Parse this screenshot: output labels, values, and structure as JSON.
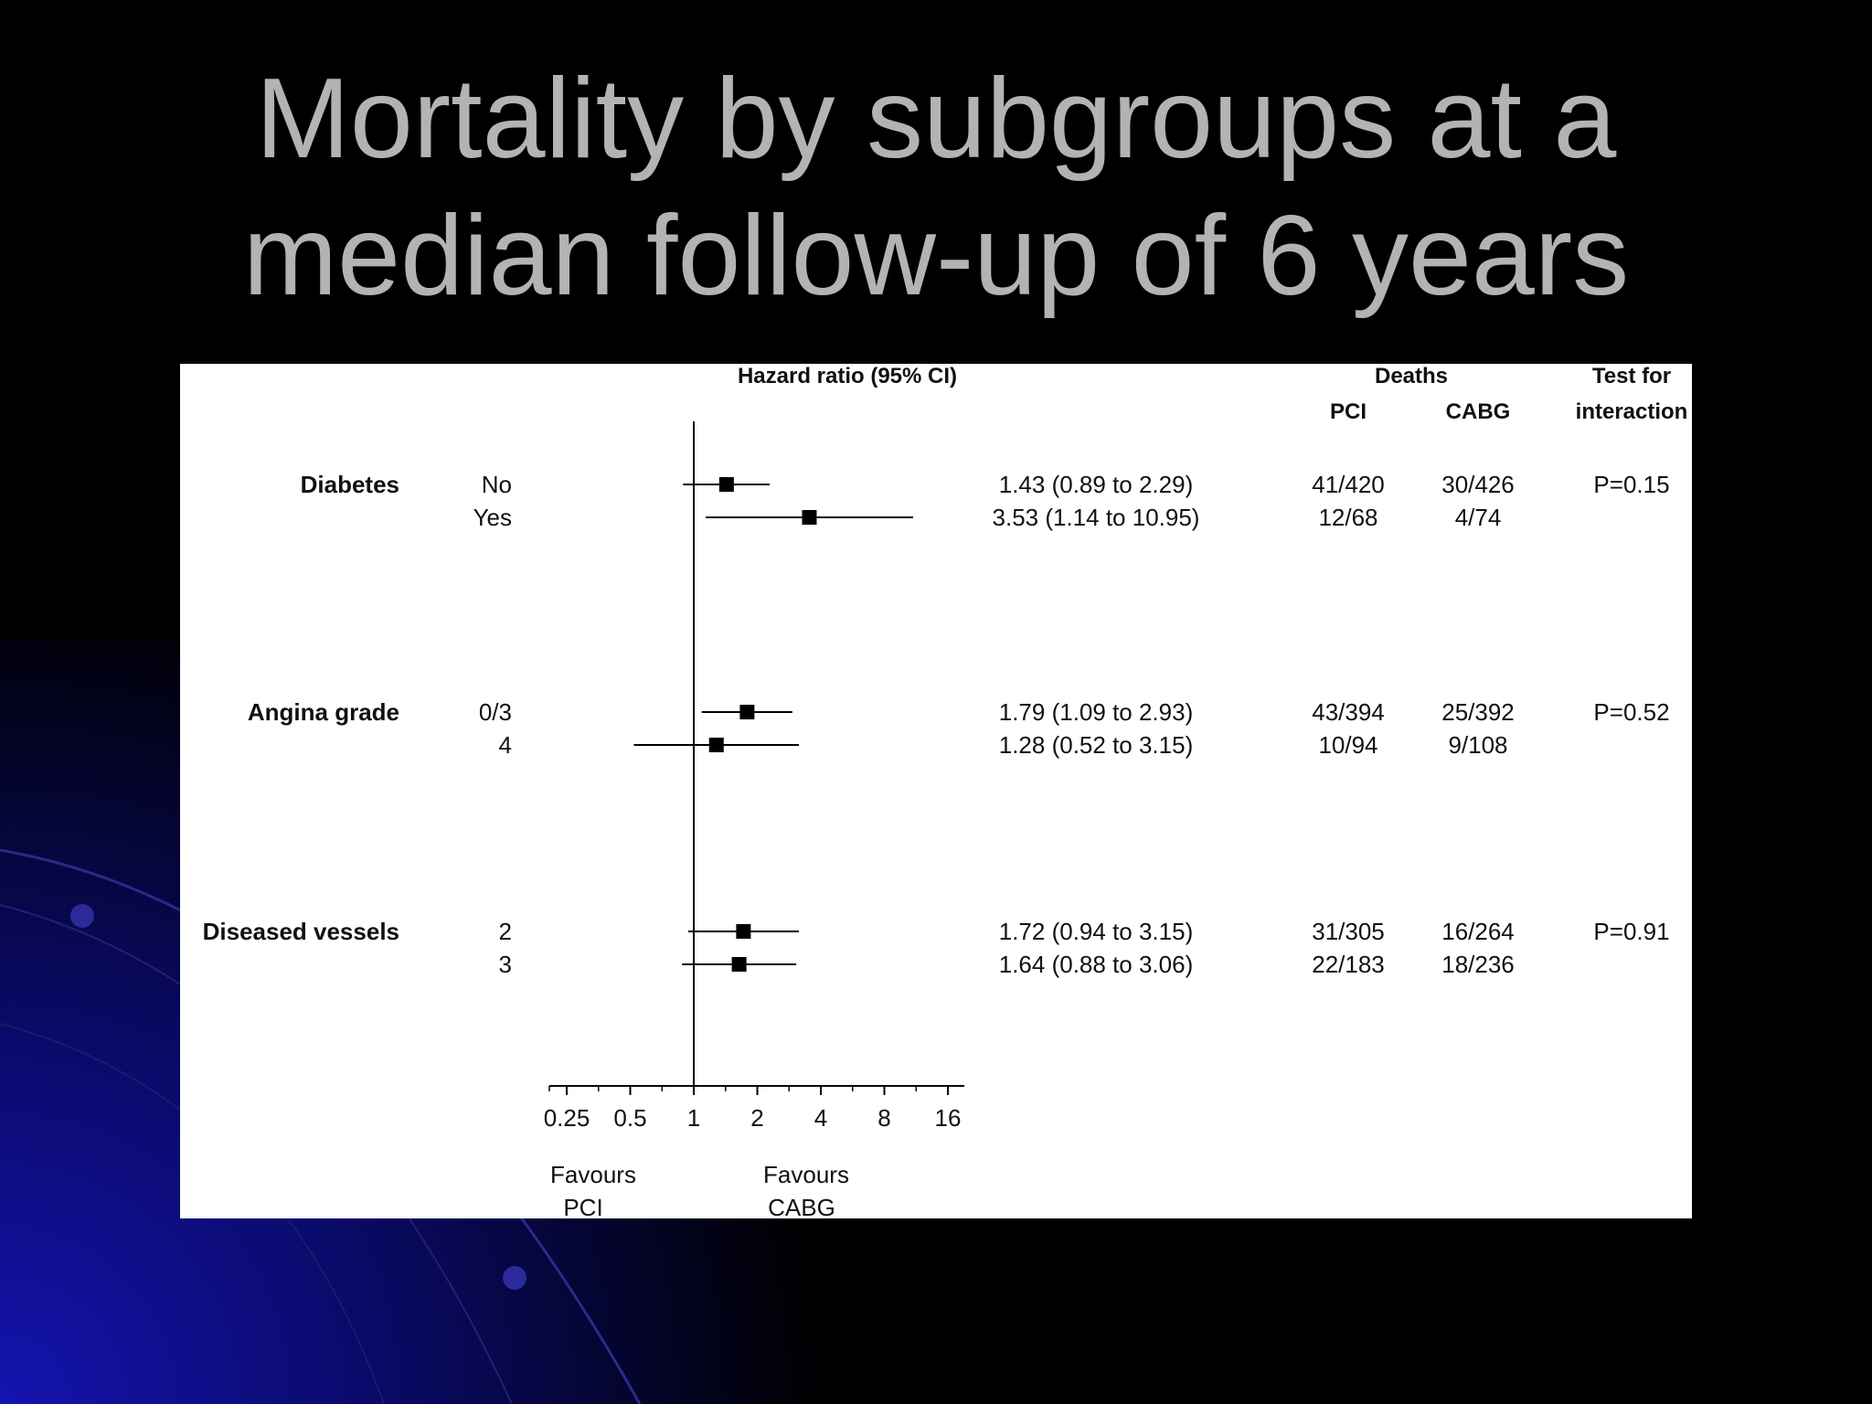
{
  "title": {
    "line1": "Mortality by subgroups at a",
    "line2": "median follow-up of 6 years"
  },
  "colors": {
    "background": "#000000",
    "title_text": "#b3b3b3",
    "panel": "#ffffff",
    "accent_blue": "#1a1aa8"
  },
  "chart_data": {
    "type": "forest",
    "header": {
      "hr_label": "Hazard ratio (95% CI)",
      "deaths_label": "Deaths",
      "pci_label": "PCI",
      "cabg_label": "CABG",
      "test_label_1": "Test for",
      "test_label_2": "interaction"
    },
    "x_scale": "log2",
    "x_ticks": [
      0.25,
      0.5,
      1,
      2,
      4,
      8,
      16
    ],
    "x_tick_labels": [
      "0.25",
      "0.5",
      "1",
      "2",
      "4",
      "8",
      "16"
    ],
    "reference_line": 1,
    "favours_left": [
      "Favours",
      "PCI"
    ],
    "favours_right": [
      "Favours",
      "CABG"
    ],
    "groups": [
      {
        "name": "Diabetes",
        "p_value": "P=0.15",
        "rows": [
          {
            "label": "No",
            "hr": 1.43,
            "lo": 0.89,
            "hi": 2.29,
            "text": "1.43 (0.89 to 2.29)",
            "pci": "41/420",
            "cabg": "30/426"
          },
          {
            "label": "Yes",
            "hr": 3.53,
            "lo": 1.14,
            "hi": 10.95,
            "text": "3.53 (1.14 to 10.95)",
            "pci": "12/68",
            "cabg": "4/74"
          }
        ]
      },
      {
        "name": "Angina grade",
        "p_value": "P=0.52",
        "rows": [
          {
            "label": "0/3",
            "hr": 1.79,
            "lo": 1.09,
            "hi": 2.93,
            "text": "1.79 (1.09 to 2.93)",
            "pci": "43/394",
            "cabg": "25/392"
          },
          {
            "label": "4",
            "hr": 1.28,
            "lo": 0.52,
            "hi": 3.15,
            "text": "1.28 (0.52 to 3.15)",
            "pci": "10/94",
            "cabg": "9/108"
          }
        ]
      },
      {
        "name": "Diseased vessels",
        "p_value": "P=0.91",
        "rows": [
          {
            "label": "2",
            "hr": 1.72,
            "lo": 0.94,
            "hi": 3.15,
            "text": "1.72 (0.94 to 3.15)",
            "pci": "31/305",
            "cabg": "16/264"
          },
          {
            "label": "3",
            "hr": 1.64,
            "lo": 0.88,
            "hi": 3.06,
            "text": "1.64 (0.88 to 3.06)",
            "pci": "22/183",
            "cabg": "18/236"
          }
        ]
      }
    ]
  }
}
